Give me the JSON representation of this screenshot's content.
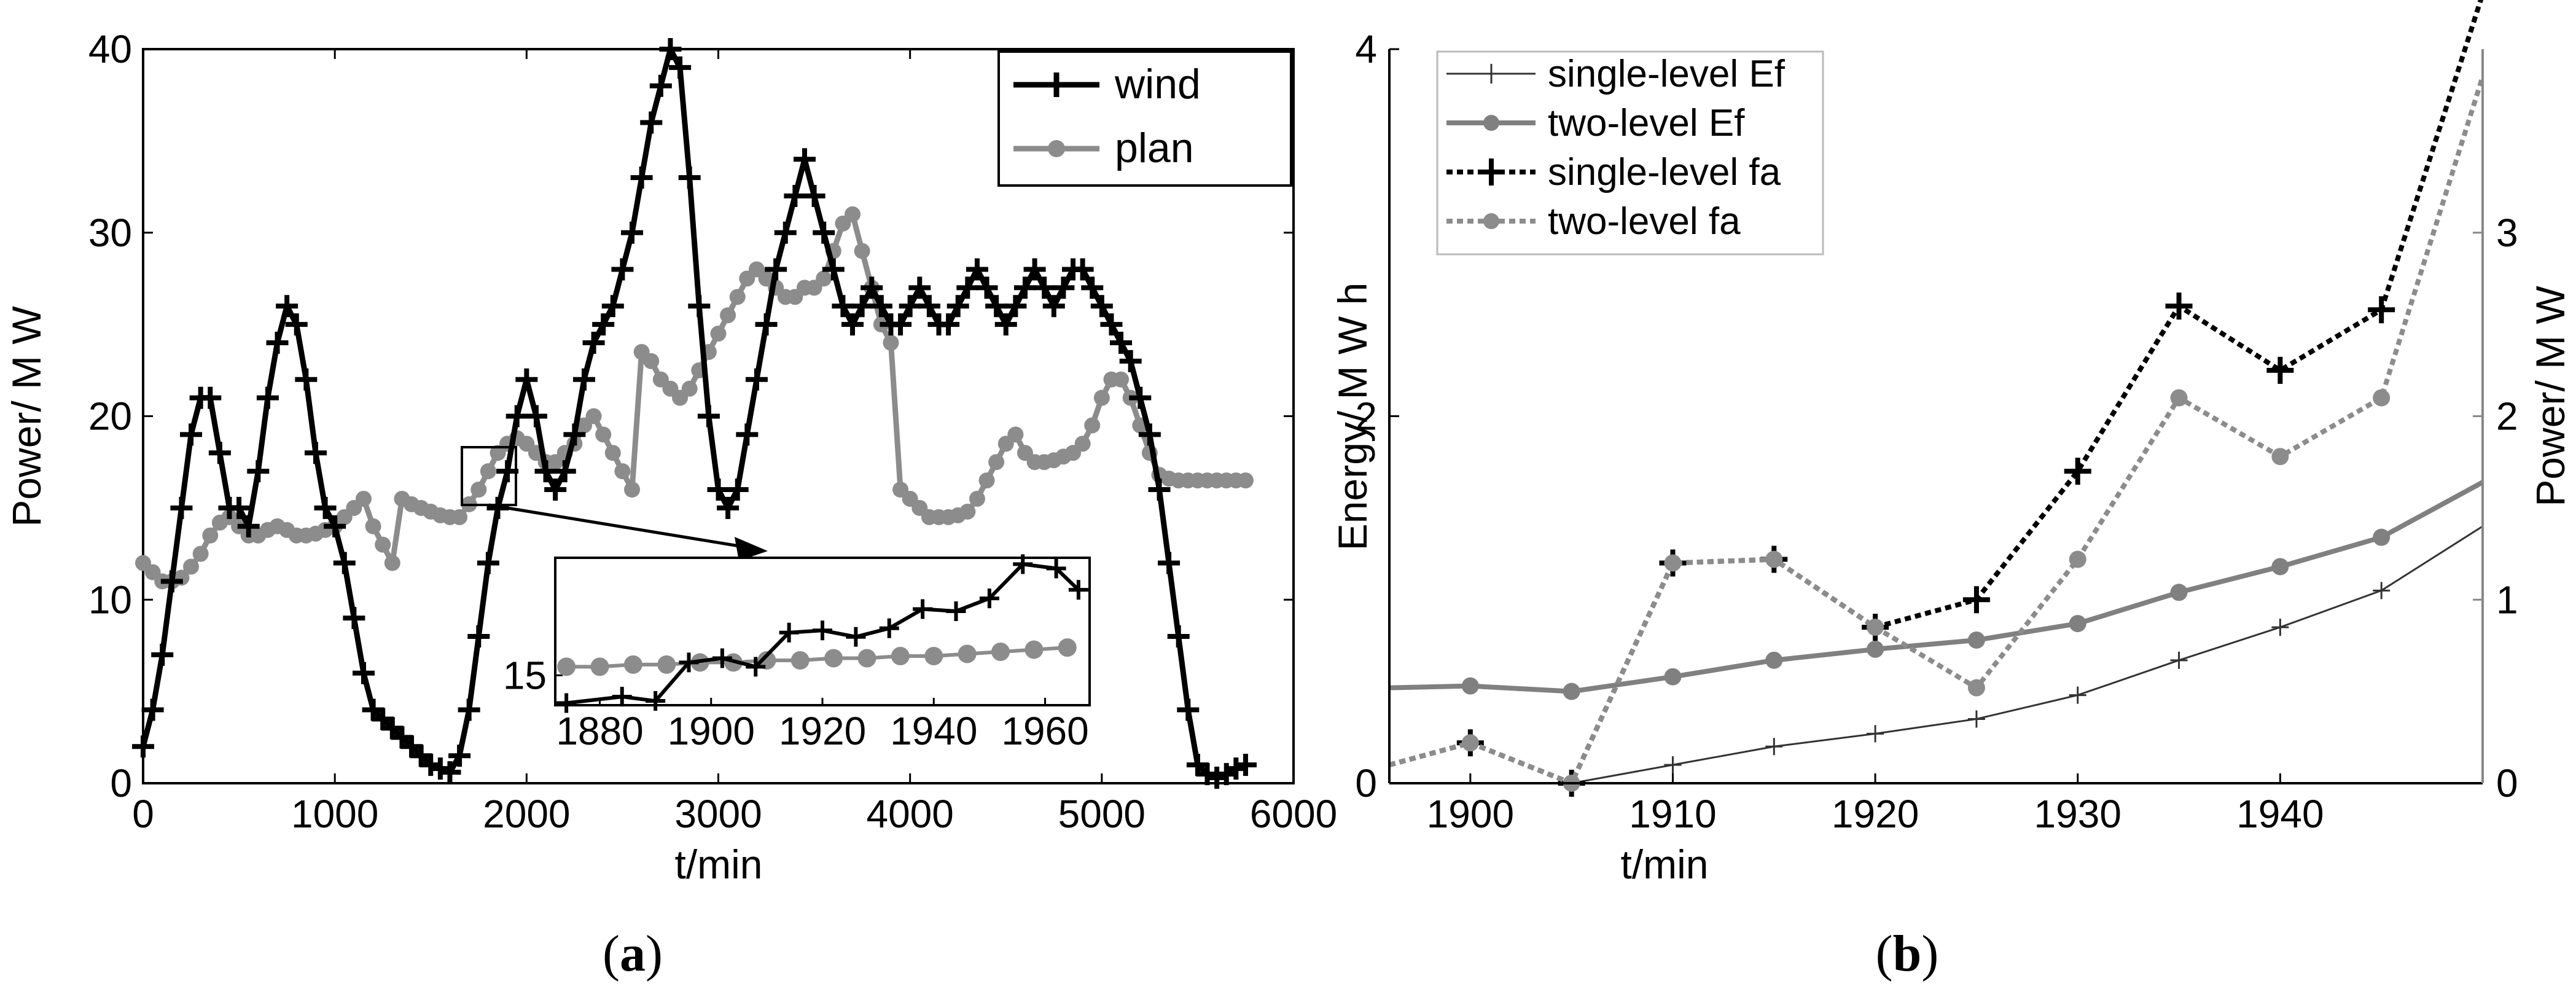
{
  "colors": {
    "wind": "#000000",
    "plan": "#8c8c8c",
    "single_ef": "#333333",
    "two_ef": "#808080",
    "single_fa": "#000000",
    "two_fa": "#8c8c8c"
  },
  "panels": {
    "a": {
      "open": "(",
      "letter": "a",
      "close": ")"
    },
    "b": {
      "open": "(",
      "letter": "b",
      "close": ")"
    }
  },
  "chart_data": [
    {
      "type": "line",
      "xlabel": "t/min",
      "ylabel": "Power/ M W",
      "xlim": [
        0,
        6000
      ],
      "ylim": [
        0,
        40
      ],
      "xticks": [
        "0",
        "1000",
        "2000",
        "3000",
        "4000",
        "5000",
        "6000"
      ],
      "yticks": [
        "0",
        "10",
        "20",
        "30",
        "40"
      ],
      "legend": {
        "position": "top-right",
        "entries": [
          "wind",
          "plan"
        ]
      },
      "series": [
        {
          "name": "wind",
          "marker": "plus",
          "x": [
            0,
            50,
            100,
            150,
            200,
            250,
            300,
            350,
            400,
            450,
            500,
            550,
            600,
            650,
            700,
            750,
            800,
            850,
            900,
            950,
            1000,
            1050,
            1100,
            1150,
            1200,
            1250,
            1300,
            1350,
            1400,
            1450,
            1500,
            1550,
            1600,
            1650,
            1700,
            1750,
            1800,
            1850,
            1900,
            1950,
            2000,
            2050,
            2100,
            2150,
            2200,
            2250,
            2300,
            2350,
            2400,
            2450,
            2500,
            2550,
            2600,
            2650,
            2700,
            2750,
            2800,
            2850,
            2900,
            2950,
            3000,
            3050,
            3100,
            3150,
            3200,
            3250,
            3300,
            3350,
            3400,
            3450,
            3500,
            3550,
            3600,
            3650,
            3700,
            3750,
            3800,
            3850,
            3900,
            3950,
            4000,
            4050,
            4100,
            4150,
            4200,
            4250,
            4300,
            4350,
            4400,
            4450,
            4500,
            4550,
            4600,
            4650,
            4700,
            4750,
            4800,
            4850,
            4900,
            4950,
            5000,
            5050,
            5100,
            5150,
            5200,
            5250,
            5300,
            5350,
            5400,
            5450,
            5500,
            5550,
            5600,
            5650,
            5700,
            5750
          ],
          "y": [
            2,
            4,
            7,
            11,
            15,
            19,
            21,
            21,
            18,
            15,
            15,
            14,
            17,
            21,
            24,
            26,
            25,
            22,
            18,
            15,
            14,
            12,
            9,
            6,
            4,
            3.5,
            3,
            2.5,
            2,
            1.5,
            1,
            0.8,
            0.6,
            1.5,
            4,
            8,
            12,
            15,
            17,
            20,
            22,
            20,
            17,
            16,
            17,
            19,
            22,
            24,
            25,
            26,
            28,
            30,
            33,
            36,
            38,
            40,
            39,
            33,
            26,
            20,
            16,
            15,
            16,
            19,
            22,
            25,
            28,
            30,
            32,
            34,
            32,
            30,
            28,
            26,
            25,
            26,
            27,
            26,
            25,
            25,
            26,
            27,
            26,
            25,
            25,
            26,
            27,
            28,
            27,
            26,
            25,
            26,
            27,
            28,
            27,
            26,
            27,
            28,
            28,
            27,
            26,
            25,
            24,
            23,
            21,
            19,
            16,
            12,
            8,
            4,
            1,
            0.5,
            0.3,
            0.5,
            0.8,
            1
          ],
          "color_key": "wind"
        },
        {
          "name": "plan",
          "marker": "circle",
          "x": [
            0,
            50,
            100,
            150,
            200,
            250,
            300,
            350,
            400,
            450,
            500,
            550,
            600,
            650,
            700,
            750,
            800,
            850,
            900,
            950,
            1000,
            1050,
            1100,
            1150,
            1200,
            1250,
            1300,
            1350,
            1400,
            1450,
            1500,
            1550,
            1600,
            1650,
            1700,
            1750,
            1800,
            1850,
            1900,
            1950,
            2000,
            2050,
            2100,
            2150,
            2200,
            2250,
            2300,
            2350,
            2400,
            2450,
            2500,
            2550,
            2600,
            2650,
            2700,
            2750,
            2800,
            2850,
            2900,
            2950,
            3000,
            3050,
            3100,
            3150,
            3200,
            3250,
            3300,
            3350,
            3400,
            3450,
            3500,
            3550,
            3600,
            3650,
            3700,
            3750,
            3800,
            3850,
            3900,
            3950,
            4000,
            4050,
            4100,
            4150,
            4200,
            4250,
            4300,
            4350,
            4400,
            4450,
            4500,
            4550,
            4600,
            4650,
            4700,
            4750,
            4800,
            4850,
            4900,
            4950,
            5000,
            5050,
            5100,
            5150,
            5200,
            5250,
            5300,
            5350,
            5400,
            5450,
            5500,
            5550,
            5600,
            5650,
            5700,
            5750
          ],
          "y": [
            12,
            11.5,
            11,
            11,
            11.2,
            11.8,
            12.5,
            13.5,
            14.2,
            14.5,
            14,
            13.5,
            13.5,
            13.8,
            14,
            13.8,
            13.5,
            13.5,
            13.6,
            13.8,
            14,
            14.5,
            15,
            15.5,
            14,
            13,
            12,
            15.5,
            15.2,
            15,
            14.8,
            14.6,
            14.5,
            14.5,
            15.2,
            16,
            17,
            18,
            18.5,
            18.8,
            18.5,
            18,
            17.5,
            17.5,
            18,
            18.5,
            19.5,
            20,
            19,
            18,
            17,
            16,
            23.5,
            23,
            22,
            21.5,
            21,
            21.5,
            22.5,
            23.5,
            24.5,
            25.5,
            26.5,
            27.5,
            28,
            27.5,
            27,
            26.5,
            26.5,
            27,
            27,
            27.5,
            29,
            30.5,
            31,
            29,
            27,
            25,
            24,
            16,
            15.5,
            15,
            14.5,
            14.5,
            14.5,
            14.6,
            14.8,
            15.5,
            16.5,
            17.5,
            18.5,
            19,
            18,
            17.5,
            17.5,
            17.6,
            17.8,
            18,
            18.5,
            19.5,
            21,
            22,
            22,
            21,
            19.5,
            18,
            16.8,
            16.6,
            16.5,
            16.5,
            16.5,
            16.5,
            16.5,
            16.5,
            16.5,
            16.5
          ],
          "color_key": "plan"
        }
      ]
    },
    {
      "type": "line",
      "role": "inset",
      "xlim": [
        1872,
        1968
      ],
      "ylim": [
        13.6,
        20.5
      ],
      "xticks": [
        "1880",
        "1900",
        "1920",
        "1940",
        "1960"
      ],
      "yticks": [
        "15"
      ],
      "series": [
        {
          "name": "wind",
          "marker": "plus",
          "x": [
            1874,
            1884,
            1890,
            1896,
            1902,
            1908,
            1914,
            1920,
            1926,
            1932,
            1938,
            1944,
            1950,
            1956,
            1962,
            1966
          ],
          "y": [
            13.7,
            14.0,
            13.8,
            15.6,
            15.8,
            15.4,
            17.0,
            17.1,
            16.8,
            17.2,
            18.1,
            18.0,
            18.6,
            20.2,
            20.0,
            19.0
          ],
          "color_key": "wind"
        },
        {
          "name": "plan",
          "marker": "circle",
          "x": [
            1874,
            1880,
            1886,
            1892,
            1898,
            1904,
            1910,
            1916,
            1922,
            1928,
            1934,
            1940,
            1946,
            1952,
            1958,
            1964
          ],
          "y": [
            15.4,
            15.4,
            15.5,
            15.5,
            15.6,
            15.6,
            15.7,
            15.7,
            15.8,
            15.8,
            15.9,
            15.9,
            16.0,
            16.1,
            16.2,
            16.3
          ],
          "color_key": "plan"
        }
      ]
    },
    {
      "type": "line",
      "xlabel": "t/min",
      "ylabel": "Energy/ M W h",
      "ylabel_right": "Power/ M W",
      "xlim": [
        1896,
        1950
      ],
      "ylim": [
        0,
        4
      ],
      "ylim_right": [
        0,
        4
      ],
      "xticks": [
        "1900",
        "1910",
        "1920",
        "1930",
        "1940"
      ],
      "yticks": [
        "0",
        "2",
        "4"
      ],
      "yticks_right": [
        "0",
        "1",
        "2",
        "3"
      ],
      "legend": {
        "position": "top-left",
        "entries": [
          "single-level Ef",
          "two-level Ef",
          "single-level fa",
          "two-level fa"
        ]
      },
      "series": [
        {
          "name": "single-level Ef",
          "axis": "left",
          "style": "thin-solid",
          "marker": "plus",
          "x": [
            1896,
            1905,
            1910,
            1915,
            1920,
            1925,
            1930,
            1935,
            1940,
            1945,
            1950
          ],
          "y": [
            0.0,
            0.0,
            0.1,
            0.2,
            0.27,
            0.35,
            0.48,
            0.67,
            0.85,
            1.05,
            1.4
          ],
          "color_key": "single_ef"
        },
        {
          "name": "two-level Ef",
          "axis": "left",
          "style": "solid",
          "marker": "circle",
          "x": [
            1896,
            1900,
            1905,
            1910,
            1915,
            1920,
            1925,
            1930,
            1935,
            1940,
            1945,
            1950
          ],
          "y": [
            0.52,
            0.53,
            0.5,
            0.58,
            0.67,
            0.73,
            0.78,
            0.87,
            1.04,
            1.18,
            1.34,
            1.64
          ],
          "color_key": "two_ef"
        },
        {
          "name": "single-level fa",
          "axis": "right",
          "style": "dotted",
          "marker": "plus",
          "x": [
            1896,
            1900,
            1905,
            1910,
            1915,
            1920,
            1925,
            1930,
            1935,
            1940,
            1945,
            1950
          ],
          "y": [
            0.1,
            0.22,
            0.0,
            1.2,
            1.22,
            0.85,
            1.0,
            1.7,
            2.6,
            2.25,
            2.58,
            4.3
          ],
          "color_key": "single_fa"
        },
        {
          "name": "two-level fa",
          "axis": "right",
          "style": "dotted",
          "marker": "circle",
          "x": [
            1896,
            1900,
            1905,
            1910,
            1915,
            1920,
            1925,
            1930,
            1935,
            1940,
            1945,
            1950
          ],
          "y": [
            0.1,
            0.22,
            0.0,
            1.2,
            1.22,
            0.85,
            0.52,
            1.22,
            2.1,
            1.78,
            2.1,
            3.85
          ],
          "color_key": "two_fa"
        }
      ]
    }
  ]
}
